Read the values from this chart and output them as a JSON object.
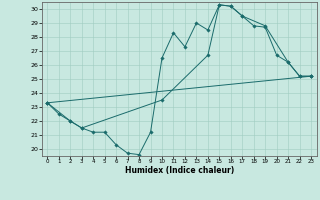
{
  "xlabel": "Humidex (Indice chaleur)",
  "xlim": [
    -0.5,
    23.5
  ],
  "ylim": [
    19.5,
    30.5
  ],
  "xticks": [
    0,
    1,
    2,
    3,
    4,
    5,
    6,
    7,
    8,
    9,
    10,
    11,
    12,
    13,
    14,
    15,
    16,
    17,
    18,
    19,
    20,
    21,
    22,
    23
  ],
  "yticks": [
    20,
    21,
    22,
    23,
    24,
    25,
    26,
    27,
    28,
    29,
    30
  ],
  "bg_color": "#c8e8e0",
  "line_color": "#1a6b6b",
  "line1_x": [
    0,
    1,
    2,
    3,
    4,
    5,
    6,
    7,
    8,
    9,
    10,
    11,
    12,
    13,
    14,
    15,
    16,
    17,
    18,
    19,
    20,
    21,
    22,
    23
  ],
  "line1_y": [
    23.3,
    22.5,
    22.0,
    21.5,
    21.2,
    21.2,
    20.3,
    19.7,
    19.6,
    21.2,
    26.5,
    28.3,
    27.3,
    29.0,
    28.5,
    30.3,
    30.2,
    29.5,
    28.8,
    28.7,
    26.7,
    26.2,
    25.2,
    25.2
  ],
  "line2_x": [
    0,
    2,
    3,
    10,
    14,
    15,
    16,
    17,
    19,
    21,
    22,
    23
  ],
  "line2_y": [
    23.3,
    22.0,
    21.5,
    23.5,
    26.7,
    30.3,
    30.2,
    29.5,
    28.8,
    26.2,
    25.2,
    25.2
  ],
  "line3_x": [
    0,
    23
  ],
  "line3_y": [
    23.3,
    25.2
  ]
}
